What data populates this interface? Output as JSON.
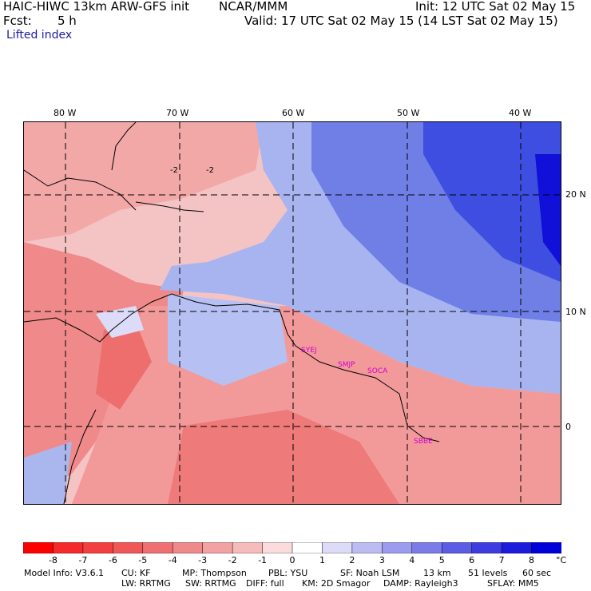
{
  "header": {
    "title": "HAIC-HIWC 13km ARW-GFS init",
    "org": "NCAR/MMM",
    "init": "Init: 12 UTC Sat 02 May 15",
    "fcst_label": "Fcst:",
    "fcst_value": "5 h",
    "valid": "Valid: 17 UTC Sat 02 May 15 (14 LST Sat 02 May 15)",
    "field": "Lifted index"
  },
  "map": {
    "lon_labels": [
      "80 W",
      "70 W",
      "60 W",
      "50 W",
      "40 W"
    ],
    "lat_labels": [
      "20 N",
      "10 N",
      "0"
    ],
    "stations": [
      "SYEJ",
      "SMJP",
      "SOCA",
      "SBBE"
    ],
    "contour_labels": [
      "-2",
      "-2"
    ]
  },
  "colorbar": {
    "levels": [
      "-8",
      "-7",
      "-6",
      "-5",
      "-4",
      "-3",
      "-2",
      "-1",
      "0",
      "1",
      "2",
      "3",
      "4",
      "5",
      "6",
      "7",
      "8"
    ],
    "unit": "°C",
    "colors": [
      "#ff0000",
      "#f52a2a",
      "#f24040",
      "#f05858",
      "#ee7070",
      "#f08a8a",
      "#f2a2a2",
      "#f6bcbc",
      "#fbdcdc",
      "#ffffff",
      "#dcdcf8",
      "#bcbcf2",
      "#9c9cee",
      "#7c7ce8",
      "#5c5ce4",
      "#3c3ce0",
      "#1c1cdc",
      "#0000d8"
    ]
  },
  "footer": {
    "line1": [
      "Model Info: V3.6.1",
      "CU: KF",
      "MP: Thompson",
      "PBL: YSU",
      "SF: Noah LSM",
      "13 km",
      "51 levels",
      "60 sec"
    ],
    "line2": [
      "LW: RRTMG",
      "SW: RRTMG",
      "DIFF: full",
      "KM: 2D Smagor",
      "DAMP: Rayleigh3",
      "SFLAY: MM5"
    ]
  }
}
